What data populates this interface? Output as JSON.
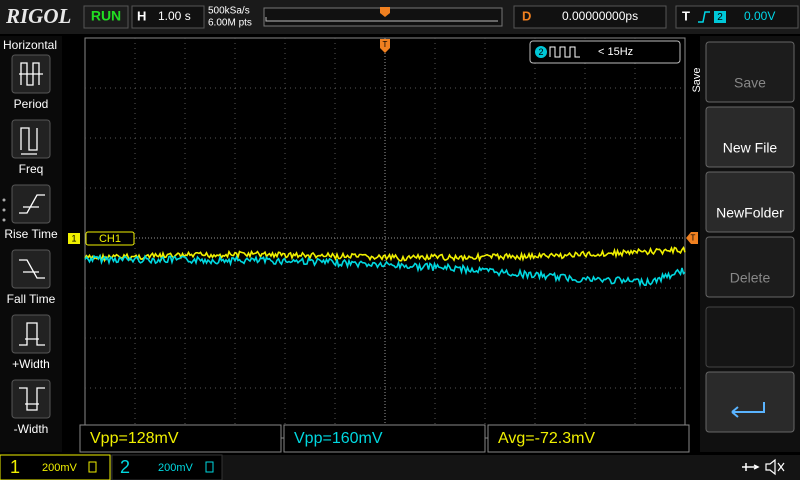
{
  "header": {
    "logo": "RIGOL",
    "status": "RUN",
    "timebase_label": "H",
    "timebase": "1.00 s",
    "sample_rate": "500kSa/s",
    "memory_depth": "6.00M pts",
    "delay_label": "D",
    "delay": "0.00000000ps",
    "trigger_label": "T",
    "trigger_source": "2",
    "trigger_level": "0.00V"
  },
  "left_menu": {
    "title": "Horizontal",
    "items": [
      "Period",
      "Freq",
      "Rise Time",
      "Fall Time",
      "+Width",
      "-Width"
    ]
  },
  "right_menu": {
    "title": "Save",
    "buttons": [
      "Save",
      "New File",
      "NewFolder",
      "Delete"
    ]
  },
  "counter": {
    "channel": "2",
    "value": "< 15Hz"
  },
  "ch1_label": "CH1",
  "channel_marker": "1",
  "measurements": [
    "Vpp=128mV",
    "Vpp=160mV",
    "Avg=-72.3mV"
  ],
  "footer": {
    "ch1": "1",
    "ch1_scale": "200mV",
    "ch2": "2",
    "ch2_scale": "200mV"
  }
}
